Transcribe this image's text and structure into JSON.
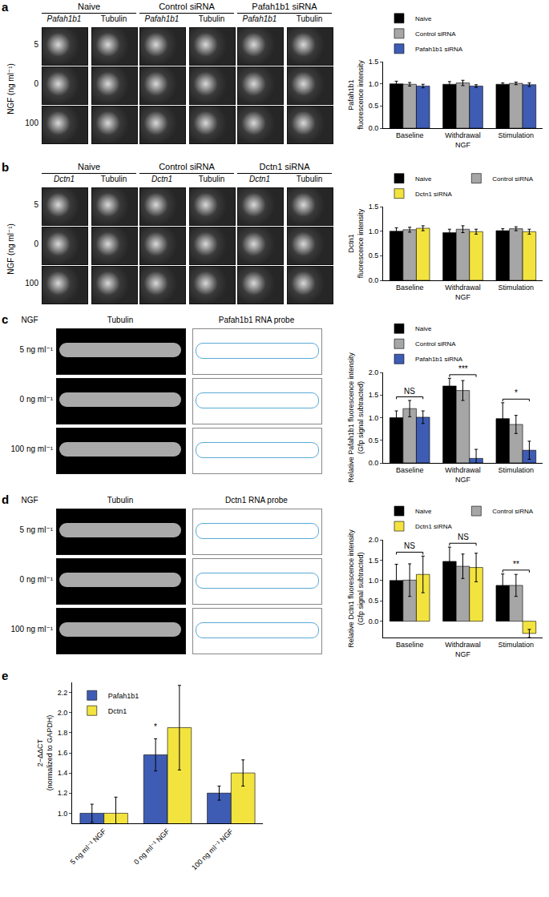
{
  "panel_labels": [
    "a",
    "b",
    "c",
    "d",
    "e"
  ],
  "image_panels": [
    {
      "kind": "grid",
      "columns": [
        {
          "title": "Naive",
          "channels": [
            "Pafah1b1",
            "Tubulin"
          ]
        },
        {
          "title": "Control siRNA",
          "channels": [
            "Pafah1b1",
            "Tubulin"
          ]
        },
        {
          "title": "Pafah1b1 siRNA",
          "channels": [
            "Pafah1b1",
            "Tubulin"
          ]
        }
      ],
      "rows": [
        "5",
        "0",
        "100"
      ],
      "row_axis_label": "NGF (ng ml⁻¹)"
    },
    {
      "kind": "grid",
      "columns": [
        {
          "title": "Naive",
          "channels": [
            "Dctn1",
            "Tubulin"
          ]
        },
        {
          "title": "Control siRNA",
          "channels": [
            "Dctn1",
            "Tubulin"
          ]
        },
        {
          "title": "Dctn1 siRNA",
          "channels": [
            "Dctn1",
            "Tubulin"
          ]
        }
      ],
      "rows": [
        "5",
        "0",
        "100"
      ],
      "row_axis_label": "NGF (ng ml⁻¹)"
    },
    {
      "kind": "axon",
      "corner_label": "NGF",
      "columns": [
        "Tubulin",
        "Pafah1b1 RNA probe"
      ],
      "rows": [
        "5 ng ml⁻¹",
        "0 ng ml⁻¹",
        "100 ng ml⁻¹"
      ]
    },
    {
      "kind": "axon",
      "corner_label": "NGF",
      "columns": [
        "Tubulin",
        "Dctn1 RNA probe"
      ],
      "rows": [
        "5 ng ml⁻¹",
        "0 ng ml⁻¹",
        "100 ng ml⁻¹"
      ]
    }
  ],
  "chart_data": [
    {
      "type": "bar",
      "categories": [
        "Baseline",
        "Withdrawal",
        "Stimulation"
      ],
      "xlabel": "NGF",
      "ylabel": [
        "Pafah1b1",
        "fluorescence intensity"
      ],
      "ylim": [
        0,
        1.5
      ],
      "yticks": [
        {
          "value": 0,
          "label": "0.0"
        },
        {
          "value": 0.5,
          "label": "0.5"
        },
        {
          "value": 1,
          "label": "1.0"
        },
        {
          "value": 1.5,
          "label": "1.5"
        }
      ],
      "legend": "top",
      "series": [
        {
          "name": "Naive",
          "color": "#000000",
          "values": [
            1.0,
            0.99,
            0.99
          ],
          "error": [
            0.06,
            0.06,
            0.03
          ]
        },
        {
          "name": "Control siRNA",
          "color": "#a6a6a6",
          "values": [
            0.99,
            1.02,
            1.01
          ],
          "error": [
            0.04,
            0.06,
            0.03
          ]
        },
        {
          "name": "Pafah1b1 siRNA",
          "color": "#3f5cb4",
          "values": [
            0.95,
            0.95,
            0.98
          ],
          "error": [
            0.04,
            0.03,
            0.04
          ]
        }
      ],
      "annotations": []
    },
    {
      "type": "bar",
      "categories": [
        "Baseline",
        "Withdrawal",
        "Stimulation"
      ],
      "xlabel": "NGF",
      "ylabel": [
        "Dctn1",
        "fluorescence intensity"
      ],
      "ylim": [
        0,
        1.5
      ],
      "yticks": [
        {
          "value": 0,
          "label": "0.0"
        },
        {
          "value": 0.5,
          "label": "0.5"
        },
        {
          "value": 1,
          "label": "1.0"
        },
        {
          "value": 1.5,
          "label": "1.5"
        }
      ],
      "legend": "top",
      "series": [
        {
          "name": "Naive",
          "color": "#000000",
          "values": [
            1.0,
            0.97,
            1.01
          ],
          "error": [
            0.07,
            0.07,
            0.04
          ]
        },
        {
          "name": "Control siRNA",
          "color": "#a6a6a6",
          "values": [
            1.03,
            1.04,
            1.05
          ],
          "error": [
            0.05,
            0.07,
            0.04
          ]
        },
        {
          "name": "Dctn1 siRNA",
          "color": "#f3e33f",
          "values": [
            1.06,
            0.99,
            0.99
          ],
          "error": [
            0.05,
            0.05,
            0.05
          ]
        }
      ],
      "annotations": []
    },
    {
      "type": "bar",
      "categories": [
        "Baseline",
        "Withdrawal",
        "Stimulation"
      ],
      "xlabel": "NGF",
      "ylabel": [
        "Relative Pafah1b1 fluorescence intensity",
        "(Gfp signal subtracted)"
      ],
      "ylim": [
        0,
        2.0
      ],
      "yticks": [
        {
          "value": 0,
          "label": "0.0"
        },
        {
          "value": 0.5,
          "label": "0.5"
        },
        {
          "value": 1,
          "label": "1.0"
        },
        {
          "value": 1.5,
          "label": "1.5"
        },
        {
          "value": 2,
          "label": "2.0"
        }
      ],
      "legend": "top",
      "series": [
        {
          "name": "Naive",
          "color": "#000000",
          "values": [
            1.0,
            1.7,
            0.98
          ],
          "error": [
            0.15,
            0.17,
            0.35
          ]
        },
        {
          "name": "Control siRNA",
          "color": "#a6a6a6",
          "values": [
            1.2,
            1.6,
            0.85
          ],
          "error": [
            0.18,
            0.22,
            0.2
          ]
        },
        {
          "name": "Pafah1b1 siRNA",
          "color": "#3f5cb4",
          "values": [
            1.01,
            0.1,
            0.28
          ],
          "error": [
            0.14,
            0.2,
            0.2
          ]
        }
      ],
      "annotations": [
        {
          "text": "NS",
          "category": "Baseline",
          "from": "Naive",
          "to": "Pafah1b1 siRNA"
        },
        {
          "text": "***",
          "category": "Withdrawal",
          "from": "Naive",
          "to": "Pafah1b1 siRNA"
        },
        {
          "text": "*",
          "category": "Stimulation",
          "from": "Naive",
          "to": "Pafah1b1 siRNA"
        }
      ]
    },
    {
      "type": "bar",
      "categories": [
        "Baseline",
        "Withdrawal",
        "Stimulation"
      ],
      "xlabel": "NGF",
      "ylabel": [
        "Relative Dctn1 fluorescence intensity",
        "(Gfp signal subtracted)"
      ],
      "ylim": [
        -0.4,
        2.0
      ],
      "yticks": [
        {
          "value": 0,
          "label": "0.0"
        },
        {
          "value": 0.5,
          "label": "0.5"
        },
        {
          "value": 1,
          "label": "1.0"
        },
        {
          "value": 1.5,
          "label": "1.5"
        },
        {
          "value": 2,
          "label": "2.0"
        }
      ],
      "legend": "top",
      "series": [
        {
          "name": "Naive",
          "color": "#000000",
          "values": [
            1.0,
            1.47,
            0.88
          ],
          "error": [
            0.4,
            0.35,
            0.28
          ]
        },
        {
          "name": "Control siRNA",
          "color": "#a6a6a6",
          "values": [
            1.01,
            1.35,
            0.88
          ],
          "error": [
            0.4,
            0.3,
            0.27
          ]
        },
        {
          "name": "Dctn1 siRNA",
          "color": "#f3e33f",
          "values": [
            1.15,
            1.32,
            -0.3
          ],
          "error": [
            0.45,
            0.35,
            0.1
          ]
        }
      ],
      "annotations": [
        {
          "text": "NS",
          "category": "Baseline",
          "from": "Naive",
          "to": "Dctn1 siRNA"
        },
        {
          "text": "NS",
          "category": "Withdrawal",
          "from": "Naive",
          "to": "Dctn1 siRNA"
        },
        {
          "text": "**",
          "category": "Stimulation",
          "from": "Naive",
          "to": "Dctn1 siRNA"
        }
      ]
    },
    {
      "type": "bar",
      "categories": [
        "5 ng ml⁻¹ NGF",
        "0 ng ml⁻¹ NGF",
        "100 ng ml⁻¹ NGF"
      ],
      "ylabel": [
        "2−ΔΔCT",
        "(normalized to GAPDH)"
      ],
      "ylim": [
        0.9,
        2.3
      ],
      "yticks": [
        {
          "value": 1,
          "label": "1.0"
        },
        {
          "value": 1.2,
          "label": "1.2"
        },
        {
          "value": 1.4,
          "label": "1.4"
        },
        {
          "value": 1.6,
          "label": "1.6"
        },
        {
          "value": 1.8,
          "label": "1.8"
        },
        {
          "value": 2,
          "label": "2.0"
        },
        {
          "value": 2.2,
          "label": "2.2"
        }
      ],
      "legend": "top left",
      "series": [
        {
          "name": "Pafah1b1",
          "color": "#3f5cb4",
          "values": [
            1.0,
            1.58,
            1.2
          ],
          "error": [
            0.09,
            0.16,
            0.07
          ]
        },
        {
          "name": "Dctn1",
          "color": "#f3e33f",
          "values": [
            1.0,
            1.85,
            1.4
          ],
          "error": [
            0.16,
            0.42,
            0.13
          ]
        }
      ],
      "annotations": [
        {
          "text": "*",
          "category": "0 ng ml⁻¹ NGF",
          "from": "Pafah1b1",
          "to": "Pafah1b1"
        }
      ]
    }
  ]
}
